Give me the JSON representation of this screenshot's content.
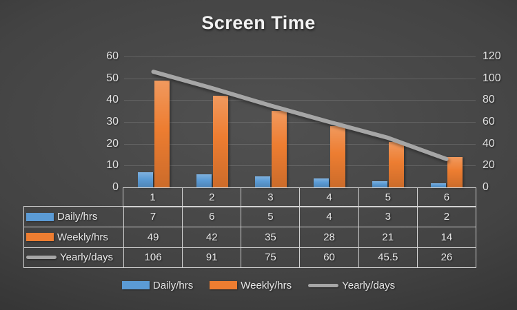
{
  "title": "Screen Time",
  "chart_data": {
    "type": "bar",
    "subtype": "combo-bar-line",
    "title": "Screen Time",
    "categories": [
      "1",
      "2",
      "3",
      "4",
      "5",
      "6"
    ],
    "series": [
      {
        "name": "Daily/hrs",
        "type": "bar",
        "axis": "left",
        "color": "#5B9BD5",
        "values": [
          7,
          6,
          5,
          4,
          3,
          2
        ]
      },
      {
        "name": "Weekly/hrs",
        "type": "bar",
        "axis": "left",
        "color": "#ED7D31",
        "values": [
          49,
          42,
          35,
          28,
          21,
          14
        ]
      },
      {
        "name": "Yearly/days",
        "type": "line",
        "axis": "right",
        "color": "#A6A6A6",
        "values": [
          106,
          91,
          75,
          60,
          45.5,
          26
        ]
      }
    ],
    "left_axis": {
      "min": 0,
      "max": 60,
      "step": 10,
      "tick_labels": [
        "0",
        "10",
        "20",
        "30",
        "40",
        "50",
        "60"
      ]
    },
    "right_axis": {
      "min": 0,
      "max": 120,
      "step": 20,
      "tick_labels": [
        "0",
        "20",
        "40",
        "60",
        "80",
        "100",
        "120"
      ]
    },
    "grid": true,
    "legend_position": "bottom",
    "data_table_shown": true,
    "xlabel": "",
    "ylabel": ""
  },
  "colors": {
    "background_center": "#4d4d4d",
    "background_edge": "#262626",
    "text": "#eaeaea",
    "table_border": "#d2d2d2",
    "daily_bar": "#5B9BD5",
    "weekly_bar": "#ED7D31",
    "yearly_line": "#A6A6A6"
  }
}
